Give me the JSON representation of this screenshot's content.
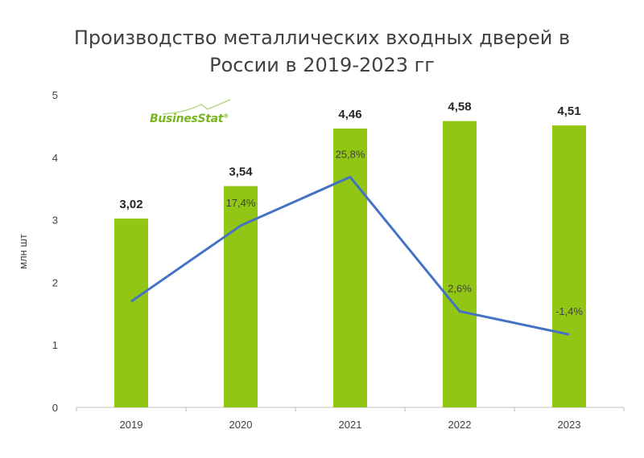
{
  "title_line1": "Производство металлических входных дверей в",
  "title_line2": "России в 2019-2023 гг",
  "logo_text": "BusinesStat",
  "logo_mark": "®",
  "colors": {
    "bar": "#92c614",
    "line": "#4472c4",
    "axis": "#bfbfbf",
    "text": "#404040"
  },
  "chart_data": {
    "type": "bar",
    "title": "Производство металлических входных дверей в России в 2019-2023 гг",
    "xlabel": "",
    "ylabel": "млн шт",
    "ylim": [
      0,
      5
    ],
    "yticks": [
      "0",
      "1",
      "2",
      "3",
      "4",
      "5"
    ],
    "grid": false,
    "categories": [
      "2019",
      "2020",
      "2021",
      "2022",
      "2023"
    ],
    "series": [
      {
        "type": "bar",
        "values": [
          3.02,
          3.54,
          4.46,
          4.58,
          4.51
        ],
        "labels": [
          "3,02",
          "3,54",
          "4,46",
          "4,58",
          "4,51"
        ]
      },
      {
        "type": "line",
        "values": [
          null,
          17.4,
          25.8,
          2.6,
          -1.4
        ],
        "labels": [
          "",
          "17,4%",
          "25,8%",
          "2,6%",
          "-1,4%"
        ],
        "ylim": [
          -14,
          40
        ]
      }
    ]
  }
}
